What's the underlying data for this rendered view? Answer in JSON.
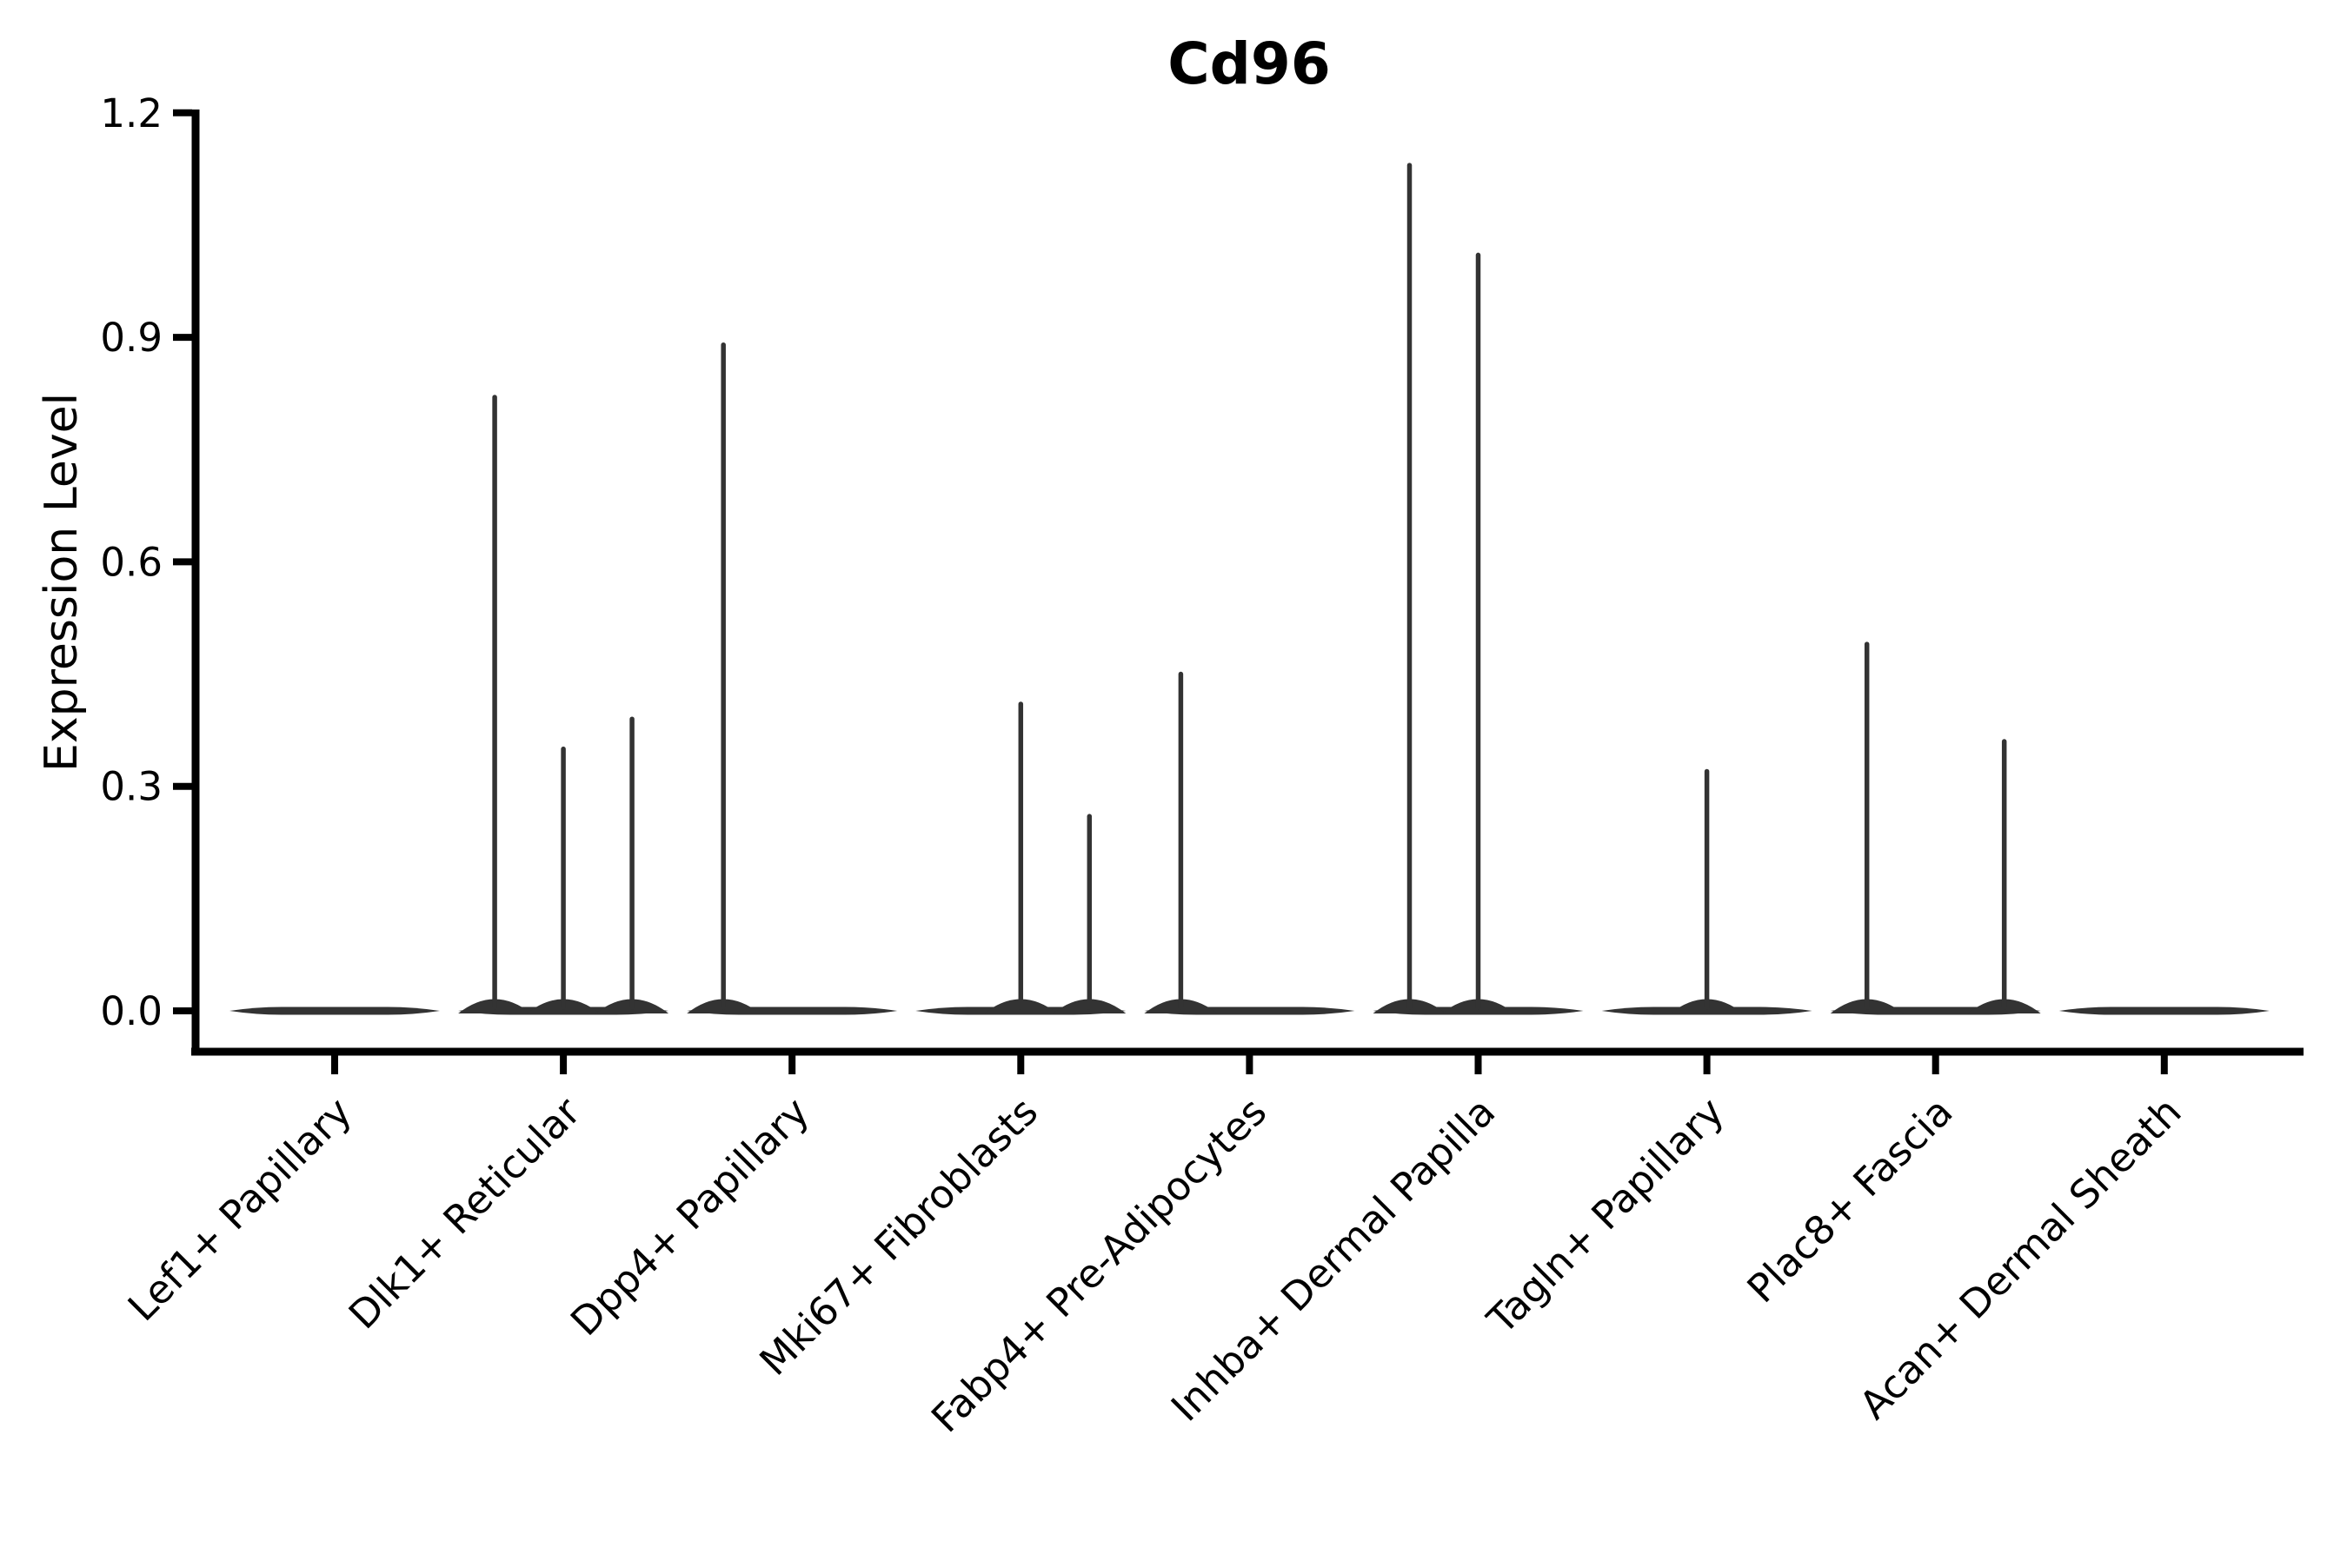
{
  "figure": {
    "background": "#ffffff"
  },
  "chart_data": {
    "type": "violin",
    "title": "Cd96",
    "xlabel": "",
    "ylabel": "Expression Level",
    "ylim": [
      0,
      1.2
    ],
    "ytick_values": [
      0.0,
      0.3,
      0.6,
      0.9,
      1.2
    ],
    "ytick_labels": [
      "0.0",
      "0.3",
      "0.6",
      "0.9",
      "1.2"
    ],
    "x_tick_rotation": 45,
    "grid": false,
    "legend": "none",
    "violin_color": "#333333",
    "axis_color": "#000000",
    "violins_per_category": 3,
    "categories": [
      "Lef1+ Papillary",
      "Dlk1+ Reticular",
      "Dpp4+ Papillary",
      "Mki67+ Fibroblasts",
      "Fabp4+ Pre-Adipocytes",
      "Inhba+ Dermal Papilla",
      "Tagln+ Papillary",
      "Plac8+ Fascia",
      "Acan+ Dermal Sheath"
    ],
    "groups": [
      {
        "category": "Lef1+ Papillary",
        "spikes": []
      },
      {
        "category": "Dlk1+ Reticular",
        "spikes": [
          {
            "slot": -1,
            "max": 0.82
          },
          {
            "slot": 0,
            "max": 0.35
          },
          {
            "slot": 1,
            "max": 0.39
          }
        ]
      },
      {
        "category": "Dpp4+ Papillary",
        "spikes": [
          {
            "slot": -1,
            "max": 0.89
          }
        ]
      },
      {
        "category": "Mki67+ Fibroblasts",
        "spikes": [
          {
            "slot": 0,
            "max": 0.41
          },
          {
            "slot": 1,
            "max": 0.26
          }
        ]
      },
      {
        "category": "Fabp4+ Pre-Adipocytes",
        "spikes": [
          {
            "slot": -1,
            "max": 0.45
          }
        ]
      },
      {
        "category": "Inhba+ Dermal Papilla",
        "spikes": [
          {
            "slot": -1,
            "max": 1.13
          },
          {
            "slot": 0,
            "max": 1.01
          }
        ]
      },
      {
        "category": "Tagln+ Papillary",
        "spikes": [
          {
            "slot": 0,
            "max": 0.32
          }
        ]
      },
      {
        "category": "Plac8+ Fascia",
        "spikes": [
          {
            "slot": -1,
            "max": 0.49
          },
          {
            "slot": 1,
            "max": 0.36
          }
        ]
      },
      {
        "category": "Acan+ Dermal Sheath",
        "spikes": []
      }
    ]
  }
}
